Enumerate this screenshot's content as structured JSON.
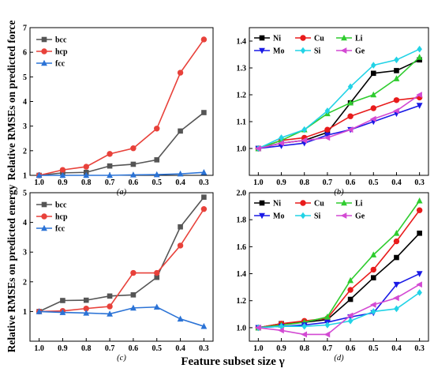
{
  "figure": {
    "ylabel_top": "Relative RMSEs on predicted force",
    "ylabel_bottom": "Relative RMSEs on predicted energy",
    "xlabel": "Feature subset size γ"
  },
  "chart_data": [
    {
      "panel": "(a)",
      "type": "line",
      "x": [
        1.0,
        0.9,
        0.8,
        0.7,
        0.6,
        0.5,
        0.4,
        0.3
      ],
      "xticks": [
        "1.0",
        "0.9",
        "0.8",
        "0.7",
        "0.6",
        "0.5",
        "0.4",
        "0.3"
      ],
      "ylim": [
        1,
        7
      ],
      "yticks": [
        1,
        2,
        3,
        4,
        5,
        6,
        7
      ],
      "legend": "top-left",
      "series": [
        {
          "name": "bcc",
          "color": "#555555",
          "marker": "square",
          "values": [
            1.0,
            1.1,
            1.12,
            1.38,
            1.45,
            1.63,
            2.8,
            3.55
          ]
        },
        {
          "name": "hcp",
          "color": "#e8413a",
          "marker": "circle",
          "values": [
            1.0,
            1.22,
            1.35,
            1.87,
            2.1,
            2.9,
            5.17,
            6.52
          ]
        },
        {
          "name": "fcc",
          "color": "#2b73d6",
          "marker": "triangle",
          "values": [
            1.0,
            1.0,
            1.0,
            1.0,
            1.02,
            1.03,
            1.06,
            1.12
          ]
        }
      ]
    },
    {
      "panel": "(b)",
      "type": "line",
      "x": [
        1.0,
        0.9,
        0.8,
        0.7,
        0.6,
        0.5,
        0.4,
        0.3
      ],
      "xticks": [
        "1.0",
        "0.9",
        "0.8",
        "0.7",
        "0.6",
        "0.5",
        "0.4",
        "0.3"
      ],
      "ylim": [
        0.9,
        1.45
      ],
      "yticks": [
        1.0,
        1.1,
        1.2,
        1.3,
        1.4
      ],
      "legend": "top-left",
      "series": [
        {
          "name": "Ni",
          "color": "#000000",
          "marker": "square",
          "values": [
            1.0,
            1.02,
            1.03,
            1.06,
            1.17,
            1.28,
            1.29,
            1.33
          ]
        },
        {
          "name": "Cu",
          "color": "#e81b1b",
          "marker": "circle",
          "values": [
            1.0,
            1.03,
            1.04,
            1.07,
            1.12,
            1.15,
            1.18,
            1.19
          ]
        },
        {
          "name": "Li",
          "color": "#2ecc2e",
          "marker": "triangle",
          "values": [
            1.0,
            1.03,
            1.07,
            1.13,
            1.17,
            1.2,
            1.26,
            1.34
          ]
        },
        {
          "name": "Mo",
          "color": "#1a1ae6",
          "marker": "triangle-down",
          "values": [
            1.0,
            1.01,
            1.02,
            1.05,
            1.07,
            1.1,
            1.13,
            1.16
          ]
        },
        {
          "name": "Si",
          "color": "#22d3e6",
          "marker": "diamond",
          "values": [
            1.0,
            1.04,
            1.07,
            1.14,
            1.23,
            1.31,
            1.33,
            1.37
          ]
        },
        {
          "name": "Ge",
          "color": "#d34ad3",
          "marker": "triangle-left",
          "values": [
            1.0,
            1.02,
            1.03,
            1.04,
            1.07,
            1.11,
            1.14,
            1.2
          ]
        }
      ]
    },
    {
      "panel": "(c)",
      "type": "line",
      "x": [
        1.0,
        0.9,
        0.8,
        0.7,
        0.6,
        0.5,
        0.4,
        0.3
      ],
      "xticks": [
        "1.0",
        "0.9",
        "0.8",
        "0.7",
        "0.6",
        "0.5",
        "0.4",
        "0.3"
      ],
      "ylim": [
        0,
        5
      ],
      "yticks": [
        1,
        2,
        3,
        4,
        5
      ],
      "legend": "top-left",
      "series": [
        {
          "name": "bcc",
          "color": "#555555",
          "marker": "square",
          "values": [
            1.0,
            1.37,
            1.38,
            1.52,
            1.56,
            2.15,
            3.85,
            4.85
          ]
        },
        {
          "name": "hcp",
          "color": "#e8413a",
          "marker": "circle",
          "values": [
            1.0,
            1.02,
            1.1,
            1.17,
            2.3,
            2.3,
            3.22,
            4.45
          ]
        },
        {
          "name": "fcc",
          "color": "#2b73d6",
          "marker": "triangle",
          "values": [
            1.0,
            0.97,
            0.95,
            0.92,
            1.12,
            1.15,
            0.75,
            0.5
          ]
        }
      ]
    },
    {
      "panel": "(d)",
      "type": "line",
      "x": [
        1.0,
        0.9,
        0.8,
        0.7,
        0.6,
        0.5,
        0.4,
        0.3
      ],
      "xticks": [
        "1.0",
        "0.9",
        "0.8",
        "0.7",
        "0.6",
        "0.5",
        "0.4",
        "0.3"
      ],
      "ylim": [
        0.9,
        2.0
      ],
      "yticks": [
        1.0,
        1.2,
        1.4,
        1.6,
        1.8,
        2.0
      ],
      "legend": "top-left",
      "series": [
        {
          "name": "Ni",
          "color": "#000000",
          "marker": "square",
          "values": [
            1.0,
            1.03,
            1.04,
            1.06,
            1.21,
            1.37,
            1.52,
            1.7
          ]
        },
        {
          "name": "Cu",
          "color": "#e81b1b",
          "marker": "circle",
          "values": [
            1.0,
            1.03,
            1.05,
            1.07,
            1.28,
            1.43,
            1.64,
            1.87
          ]
        },
        {
          "name": "Li",
          "color": "#2ecc2e",
          "marker": "triangle",
          "values": [
            1.0,
            1.02,
            1.04,
            1.08,
            1.35,
            1.54,
            1.7,
            1.94
          ]
        },
        {
          "name": "Mo",
          "color": "#1a1ae6",
          "marker": "triangle-down",
          "values": [
            1.0,
            1.01,
            1.02,
            1.04,
            1.08,
            1.11,
            1.32,
            1.4
          ]
        },
        {
          "name": "Si",
          "color": "#22d3e6",
          "marker": "diamond",
          "values": [
            1.0,
            1.01,
            1.01,
            1.02,
            1.05,
            1.12,
            1.14,
            1.26
          ]
        },
        {
          "name": "Ge",
          "color": "#d34ad3",
          "marker": "triangle-left",
          "values": [
            1.0,
            0.98,
            0.95,
            0.95,
            1.09,
            1.17,
            1.22,
            1.32
          ]
        }
      ]
    }
  ]
}
